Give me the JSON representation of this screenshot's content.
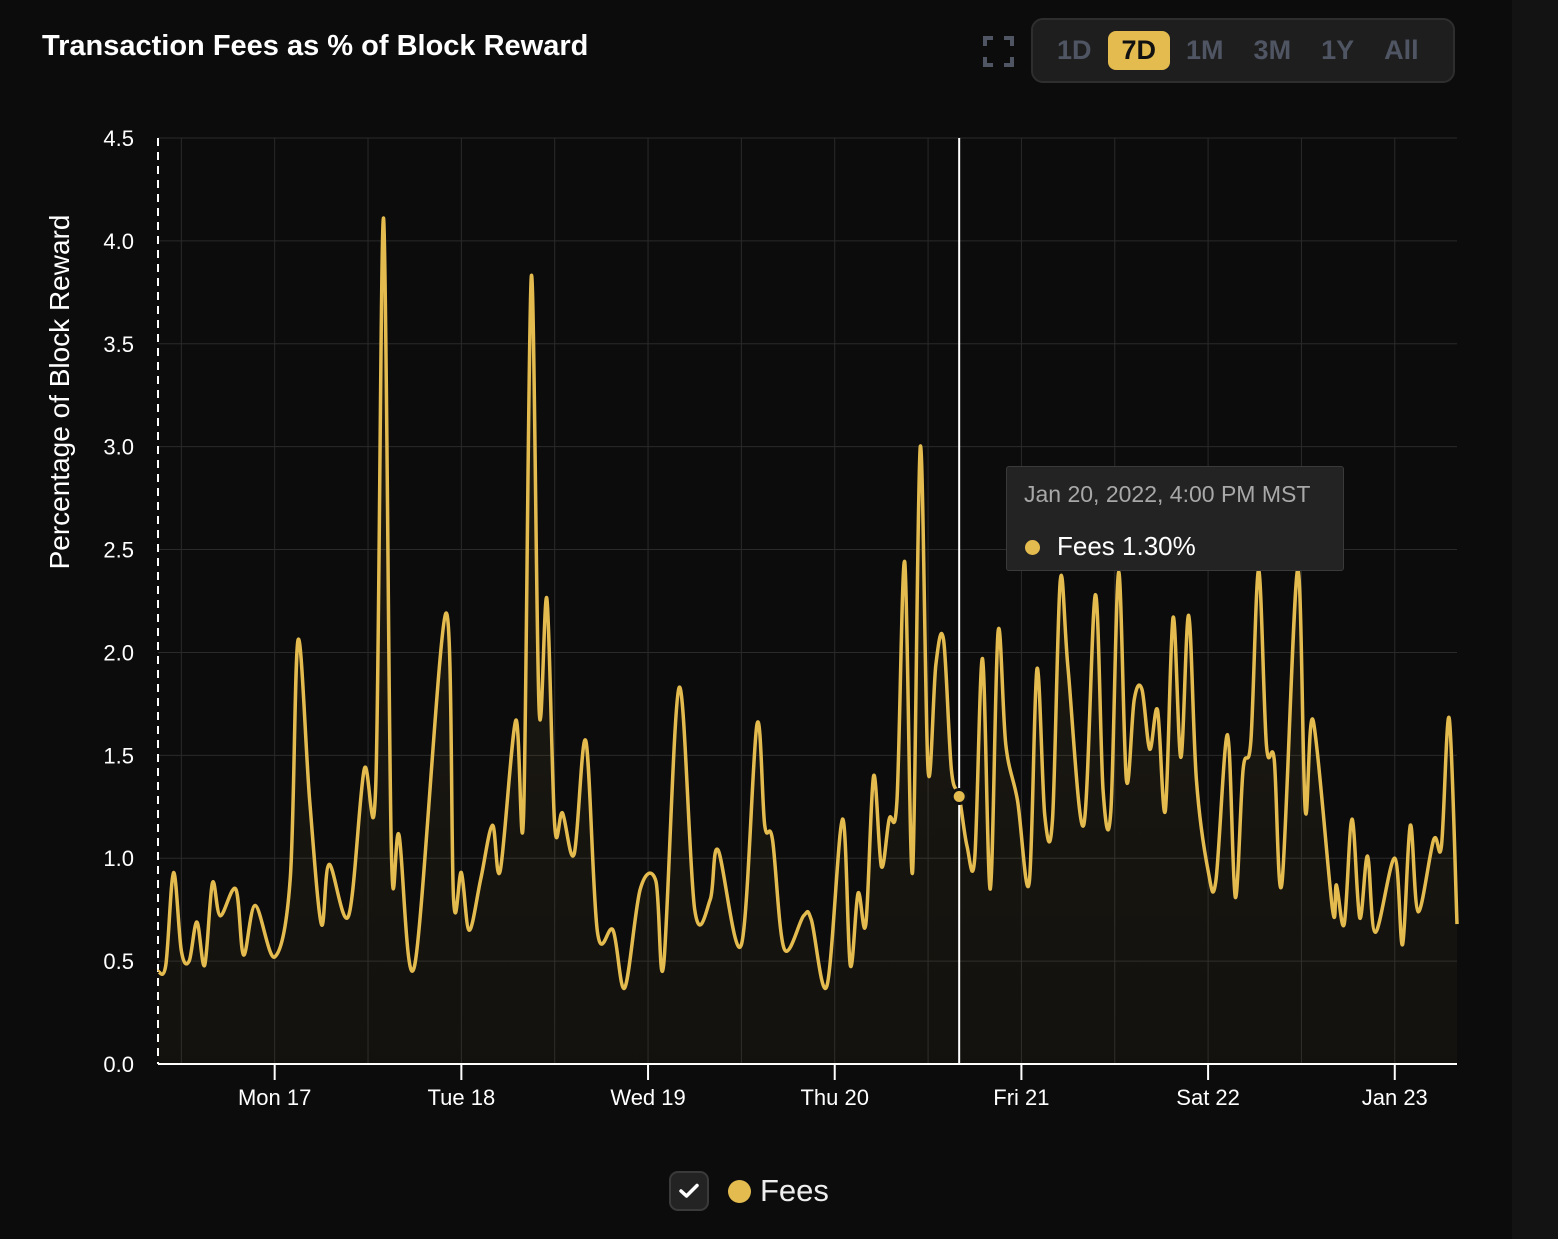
{
  "header": {
    "title": "Transaction Fees as % of Block Reward",
    "fullscreen_icon": "expand-icon",
    "ranges": [
      {
        "label": "1D",
        "active": false
      },
      {
        "label": "7D",
        "active": true
      },
      {
        "label": "1M",
        "active": false
      },
      {
        "label": "3M",
        "active": false
      },
      {
        "label": "1Y",
        "active": false
      },
      {
        "label": "All",
        "active": false
      }
    ]
  },
  "tooltip": {
    "date": "Jan 20, 2022, 4:00 PM MST",
    "label": "Fees 1.30%",
    "x": "2022-01-20T16:00",
    "y": 1.3
  },
  "legend": {
    "label": "Fees",
    "checked": true,
    "check_icon": "checkmark-icon"
  },
  "colors": {
    "series": "#e4bb4f",
    "background": "#0c0c0c",
    "active_range": "#e4bb4f"
  },
  "chart_data": {
    "type": "area",
    "title": "Transaction Fees as % of Block Reward",
    "ylabel": "Percentage of Block Reward",
    "xlabel": "",
    "ylim": [
      0,
      4.5
    ],
    "xlim": [
      "2022-01-16T09:00",
      "2022-01-23T08:00"
    ],
    "yticks": [
      "0.0",
      "0.5",
      "1.0",
      "1.5",
      "2.0",
      "2.5",
      "3.0",
      "3.5",
      "4.0",
      "4.5"
    ],
    "xticks": [
      {
        "label": "Mon 17",
        "x": "2022-01-17T00:00"
      },
      {
        "label": "Tue 18",
        "x": "2022-01-18T00:00"
      },
      {
        "label": "Wed 19",
        "x": "2022-01-19T00:00"
      },
      {
        "label": "Thu 20",
        "x": "2022-01-20T00:00"
      },
      {
        "label": "Fri 21",
        "x": "2022-01-21T00:00"
      },
      {
        "label": "Sat 22",
        "x": "2022-01-22T00:00"
      },
      {
        "label": "Jan 23",
        "x": "2022-01-23T00:00"
      }
    ],
    "grid": true,
    "legend_position": "bottom",
    "series": [
      {
        "name": "Fees",
        "points": [
          [
            "2022-01-16T09:00",
            0.45
          ],
          [
            "2022-01-16T10:00",
            0.48
          ],
          [
            "2022-01-16T11:00",
            0.93
          ],
          [
            "2022-01-16T12:00",
            0.55
          ],
          [
            "2022-01-16T13:00",
            0.5
          ],
          [
            "2022-01-16T14:00",
            0.69
          ],
          [
            "2022-01-16T15:00",
            0.48
          ],
          [
            "2022-01-16T16:00",
            0.88
          ],
          [
            "2022-01-16T17:00",
            0.72
          ],
          [
            "2022-01-16T19:00",
            0.85
          ],
          [
            "2022-01-16T20:00",
            0.53
          ],
          [
            "2022-01-16T21:30",
            0.77
          ],
          [
            "2022-01-17T00:00",
            0.52
          ],
          [
            "2022-01-17T02:00",
            0.9
          ],
          [
            "2022-01-17T03:00",
            2.06
          ],
          [
            "2022-01-17T04:30",
            1.28
          ],
          [
            "2022-01-17T06:00",
            0.68
          ],
          [
            "2022-01-17T07:00",
            0.97
          ],
          [
            "2022-01-17T09:30",
            0.72
          ],
          [
            "2022-01-17T11:30",
            1.43
          ],
          [
            "2022-01-17T13:00",
            1.36
          ],
          [
            "2022-01-17T14:00",
            4.11
          ],
          [
            "2022-01-17T15:00",
            1.04
          ],
          [
            "2022-01-17T16:00",
            1.11
          ],
          [
            "2022-01-17T18:00",
            0.48
          ],
          [
            "2022-01-17T22:00",
            2.19
          ],
          [
            "2022-01-17T23:00",
            0.8
          ],
          [
            "2022-01-18T00:00",
            0.93
          ],
          [
            "2022-01-18T01:00",
            0.65
          ],
          [
            "2022-01-18T02:30",
            0.9
          ],
          [
            "2022-01-18T04:00",
            1.16
          ],
          [
            "2022-01-18T05:00",
            0.94
          ],
          [
            "2022-01-18T07:00",
            1.67
          ],
          [
            "2022-01-18T08:00",
            1.21
          ],
          [
            "2022-01-18T09:00",
            3.83
          ],
          [
            "2022-01-18T10:00",
            1.72
          ],
          [
            "2022-01-18T11:00",
            2.26
          ],
          [
            "2022-01-18T12:00",
            1.16
          ],
          [
            "2022-01-18T13:00",
            1.22
          ],
          [
            "2022-01-18T14:30",
            1.02
          ],
          [
            "2022-01-18T16:00",
            1.57
          ],
          [
            "2022-01-18T17:30",
            0.64
          ],
          [
            "2022-01-18T19:30",
            0.65
          ],
          [
            "2022-01-18T21:00",
            0.37
          ],
          [
            "2022-01-18T23:00",
            0.85
          ],
          [
            "2022-01-19T01:00",
            0.89
          ],
          [
            "2022-01-19T02:00",
            0.48
          ],
          [
            "2022-01-19T04:00",
            1.83
          ],
          [
            "2022-01-19T06:00",
            0.75
          ],
          [
            "2022-01-19T08:00",
            0.8
          ],
          [
            "2022-01-19T09:00",
            1.04
          ],
          [
            "2022-01-19T12:00",
            0.58
          ],
          [
            "2022-01-19T14:00",
            1.65
          ],
          [
            "2022-01-19T15:00",
            1.16
          ],
          [
            "2022-01-19T16:00",
            1.09
          ],
          [
            "2022-01-19T17:30",
            0.56
          ],
          [
            "2022-01-19T20:00",
            0.72
          ],
          [
            "2022-01-19T21:00",
            0.7
          ],
          [
            "2022-01-19T23:00",
            0.38
          ],
          [
            "2022-01-20T01:00",
            1.19
          ],
          [
            "2022-01-20T02:00",
            0.48
          ],
          [
            "2022-01-20T03:00",
            0.83
          ],
          [
            "2022-01-20T04:00",
            0.68
          ],
          [
            "2022-01-20T05:00",
            1.4
          ],
          [
            "2022-01-20T06:00",
            0.96
          ],
          [
            "2022-01-20T07:00",
            1.19
          ],
          [
            "2022-01-20T08:00",
            1.28
          ],
          [
            "2022-01-20T09:00",
            2.44
          ],
          [
            "2022-01-20T10:00",
            0.93
          ],
          [
            "2022-01-20T11:00",
            3.0
          ],
          [
            "2022-01-20T12:00",
            1.43
          ],
          [
            "2022-01-20T13:00",
            1.94
          ],
          [
            "2022-01-20T14:00",
            2.06
          ],
          [
            "2022-01-20T15:00",
            1.43
          ],
          [
            "2022-01-20T16:00",
            1.3
          ],
          [
            "2022-01-20T17:00",
            1.06
          ],
          [
            "2022-01-20T18:00",
            1.0
          ],
          [
            "2022-01-20T19:00",
            1.97
          ],
          [
            "2022-01-20T20:00",
            0.85
          ],
          [
            "2022-01-20T21:00",
            2.1
          ],
          [
            "2022-01-20T22:00",
            1.55
          ],
          [
            "2022-01-20T23:30",
            1.28
          ],
          [
            "2022-01-21T01:00",
            0.88
          ],
          [
            "2022-01-21T02:00",
            1.92
          ],
          [
            "2022-01-21T03:00",
            1.21
          ],
          [
            "2022-01-21T04:00",
            1.19
          ],
          [
            "2022-01-21T05:00",
            2.35
          ],
          [
            "2022-01-21T06:00",
            1.92
          ],
          [
            "2022-01-21T08:00",
            1.16
          ],
          [
            "2022-01-21T09:30",
            2.28
          ],
          [
            "2022-01-21T10:30",
            1.33
          ],
          [
            "2022-01-21T11:30",
            1.23
          ],
          [
            "2022-01-21T12:30",
            2.39
          ],
          [
            "2022-01-21T13:30",
            1.38
          ],
          [
            "2022-01-21T14:30",
            1.77
          ],
          [
            "2022-01-21T15:30",
            1.82
          ],
          [
            "2022-01-21T16:30",
            1.53
          ],
          [
            "2022-01-21T17:30",
            1.72
          ],
          [
            "2022-01-21T18:30",
            1.23
          ],
          [
            "2022-01-21T19:30",
            2.17
          ],
          [
            "2022-01-21T20:30",
            1.49
          ],
          [
            "2022-01-21T21:30",
            2.18
          ],
          [
            "2022-01-21T22:30",
            1.38
          ],
          [
            "2022-01-22T00:00",
            0.94
          ],
          [
            "2022-01-22T01:00",
            0.89
          ],
          [
            "2022-01-22T02:30",
            1.6
          ],
          [
            "2022-01-22T03:30",
            0.81
          ],
          [
            "2022-01-22T04:30",
            1.43
          ],
          [
            "2022-01-22T05:30",
            1.57
          ],
          [
            "2022-01-22T06:30",
            2.4
          ],
          [
            "2022-01-22T07:30",
            1.55
          ],
          [
            "2022-01-22T08:30",
            1.48
          ],
          [
            "2022-01-22T09:30",
            0.88
          ],
          [
            "2022-01-22T11:30",
            2.4
          ],
          [
            "2022-01-22T12:30",
            1.23
          ],
          [
            "2022-01-22T13:30",
            1.67
          ],
          [
            "2022-01-22T16:00",
            0.75
          ],
          [
            "2022-01-22T16:30",
            0.87
          ],
          [
            "2022-01-22T17:30",
            0.68
          ],
          [
            "2022-01-22T18:30",
            1.19
          ],
          [
            "2022-01-22T19:30",
            0.71
          ],
          [
            "2022-01-22T20:30",
            1.01
          ],
          [
            "2022-01-22T21:30",
            0.64
          ],
          [
            "2022-01-23T00:00",
            1.0
          ],
          [
            "2022-01-23T01:00",
            0.58
          ],
          [
            "2022-01-23T02:00",
            1.16
          ],
          [
            "2022-01-23T03:00",
            0.74
          ],
          [
            "2022-01-23T05:00",
            1.09
          ],
          [
            "2022-01-23T06:00",
            1.06
          ],
          [
            "2022-01-23T07:00",
            1.68
          ],
          [
            "2022-01-23T08:00",
            0.68
          ]
        ]
      }
    ]
  }
}
